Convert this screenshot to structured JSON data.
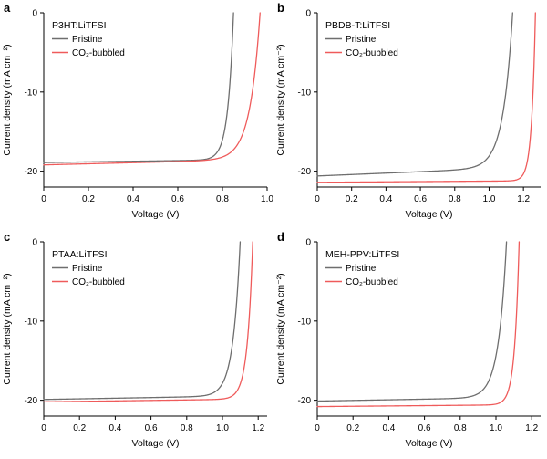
{
  "figure": {
    "background": "#ffffff",
    "description": "Four-panel J-V curves of polymer:LiTFSI solar cells, pristine vs CO2-bubbled"
  },
  "colors": {
    "pristine": "#6e6e6e",
    "co2_bubbled": "#ef5b5b",
    "axis": "#000000"
  },
  "chart_data": [
    {
      "type": "line",
      "panel": "a",
      "title": "P3HT:LiTFSI",
      "xlabel": "Voltage (V)",
      "ylabel": "Current density (mA cm⁻²)",
      "xlim": [
        0,
        1.0
      ],
      "ylim": [
        -22,
        0
      ],
      "xticks": {
        "values": [
          0,
          0.2,
          0.4,
          0.6,
          0.8,
          1.0
        ],
        "labels": [
          "0",
          "0.2",
          "0.4",
          "0.6",
          "0.8",
          "1.0"
        ]
      },
      "yticks": {
        "values": [
          0,
          -10,
          -20
        ],
        "labels": [
          "0",
          "-10",
          "-20"
        ]
      },
      "legend_position": "top-left",
      "series": [
        {
          "name": "Pristine",
          "color": "#6e6e6e",
          "jsc": 18.9,
          "voc": 0.85,
          "knee_width": 0.025,
          "shunt_slope": 0.4
        },
        {
          "name": "CO₂-bubbled",
          "color": "#ef5b5b",
          "jsc": 19.2,
          "voc": 0.97,
          "knee_width": 0.045,
          "shunt_slope": 0.7
        }
      ]
    },
    {
      "type": "line",
      "panel": "b",
      "title": "PBDB-T:LiTFSI",
      "xlabel": "Voltage (V)",
      "ylabel": "Current density (mA cm⁻²)",
      "xlim": [
        0,
        1.3
      ],
      "ylim": [
        -22,
        0
      ],
      "xticks": {
        "values": [
          0,
          0.2,
          0.4,
          0.6,
          0.8,
          1.0,
          1.2
        ],
        "labels": [
          "0",
          "0.2",
          "0.4",
          "0.6",
          "0.8",
          "1.0",
          "1.2"
        ]
      },
      "yticks": {
        "values": [
          0,
          -10,
          -20
        ],
        "labels": [
          "0",
          "-10",
          "-20"
        ]
      },
      "legend_position": "top-left",
      "series": [
        {
          "name": "Pristine",
          "color": "#6e6e6e",
          "jsc": 20.6,
          "voc": 1.14,
          "knee_width": 0.055,
          "shunt_slope": 0.9
        },
        {
          "name": "CO₂-bubbled",
          "color": "#ef5b5b",
          "jsc": 21.4,
          "voc": 1.27,
          "knee_width": 0.022,
          "shunt_slope": 0.15
        }
      ]
    },
    {
      "type": "line",
      "panel": "c",
      "title": "PTAA:LiTFSI",
      "xlabel": "Voltage (V)",
      "ylabel": "Current density (mA cm⁻²)",
      "xlim": [
        0,
        1.25
      ],
      "ylim": [
        -22,
        0
      ],
      "xticks": {
        "values": [
          0,
          0.2,
          0.4,
          0.6,
          0.8,
          1.0,
          1.2
        ],
        "labels": [
          "0",
          "0.2",
          "0.4",
          "0.6",
          "0.8",
          "1.0",
          "1.2"
        ]
      },
      "yticks": {
        "values": [
          0,
          -10,
          -20
        ],
        "labels": [
          "0",
          "-10",
          "-20"
        ]
      },
      "legend_position": "top-left",
      "series": [
        {
          "name": "Pristine",
          "color": "#6e6e6e",
          "jsc": 19.9,
          "voc": 1.1,
          "knee_width": 0.04,
          "shunt_slope": 0.4
        },
        {
          "name": "CO₂-bubbled",
          "color": "#ef5b5b",
          "jsc": 20.2,
          "voc": 1.17,
          "knee_width": 0.03,
          "shunt_slope": 0.3
        }
      ]
    },
    {
      "type": "line",
      "panel": "d",
      "title": "MEH-PPV:LiTFSI",
      "xlabel": "Voltage (V)",
      "ylabel": "Current density (mA cm⁻²)",
      "xlim": [
        0,
        1.25
      ],
      "ylim": [
        -22,
        0
      ],
      "xticks": {
        "values": [
          0,
          0.2,
          0.4,
          0.6,
          0.8,
          1.0,
          1.2
        ],
        "labels": [
          "0",
          "0.2",
          "0.4",
          "0.6",
          "0.8",
          "1.0",
          "1.2"
        ]
      },
      "yticks": {
        "values": [
          0,
          -10,
          -20
        ],
        "labels": [
          "0",
          "-10",
          "-20"
        ]
      },
      "legend_position": "top-left",
      "series": [
        {
          "name": "Pristine",
          "color": "#6e6e6e",
          "jsc": 20.1,
          "voc": 1.06,
          "knee_width": 0.045,
          "shunt_slope": 0.4
        },
        {
          "name": "CO₂-bubbled",
          "color": "#ef5b5b",
          "jsc": 20.8,
          "voc": 1.13,
          "knee_width": 0.025,
          "shunt_slope": 0.2
        }
      ]
    }
  ]
}
